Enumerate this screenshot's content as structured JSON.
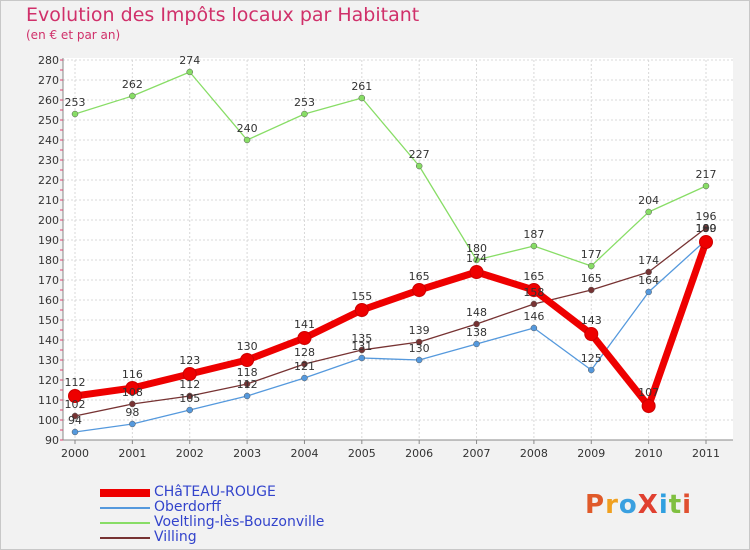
{
  "header": {
    "title": "Evolution des Impôts locaux par Habitant",
    "subtitle": "(en € et par an)"
  },
  "logo": {
    "text": "ProXiti",
    "colors": [
      "#e05a2a",
      "#f0a020",
      "#3aa0e0",
      "#e04030",
      "#30a0e0",
      "#80c040",
      "#e05030"
    ]
  },
  "chart_data": {
    "type": "line",
    "title": "Evolution des Impôts locaux par Habitant",
    "subtitle": "(en € et par an)",
    "xlabel": "",
    "ylabel": "",
    "x": [
      "2000",
      "2001",
      "2002",
      "2003",
      "2004",
      "2005",
      "2006",
      "2007",
      "2008",
      "2009",
      "2010",
      "2011"
    ],
    "ylim": [
      90,
      280
    ],
    "yticks": [
      90,
      100,
      110,
      120,
      130,
      140,
      150,
      160,
      170,
      180,
      190,
      200,
      210,
      220,
      230,
      240,
      250,
      260,
      270,
      280
    ],
    "grid": true,
    "legend_position": "bottom-left",
    "series": [
      {
        "name": "CHâTEAU-ROUGE",
        "color": "#ee0000",
        "width": "thick",
        "values": [
          112,
          116,
          123,
          130,
          141,
          155,
          165,
          174,
          165,
          143,
          107,
          189
        ]
      },
      {
        "name": "Oberdorff",
        "color": "#5599dd",
        "width": "thin",
        "values": [
          94,
          98,
          105,
          112,
          121,
          131,
          130,
          138,
          146,
          125,
          164,
          190
        ]
      },
      {
        "name": "Voeltling-lès-Bouzonville",
        "color": "#88dd66",
        "width": "thin",
        "values": [
          253,
          262,
          274,
          240,
          253,
          261,
          227,
          180,
          187,
          177,
          204,
          217
        ]
      },
      {
        "name": "Villing",
        "color": "#773333",
        "width": "thin",
        "values": [
          102,
          108,
          112,
          118,
          128,
          135,
          139,
          148,
          158,
          165,
          174,
          196
        ]
      }
    ]
  }
}
